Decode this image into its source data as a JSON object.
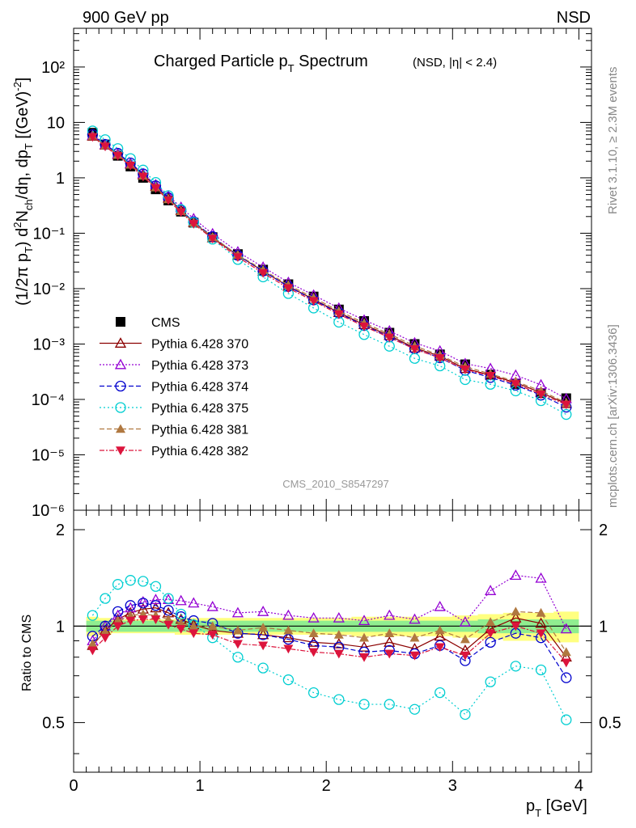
{
  "header": {
    "left": "900 GeV pp",
    "right": "NSD"
  },
  "plot_title": "Charged Particle p",
  "plot_title_sub": "T",
  "plot_title_rest": " Spectrum",
  "plot_title_cut": "(NSD, |η| < 2.4)",
  "ylabel_main": "(1/2π p_T) d²N_ch/dη, dp_T [(GeV)⁻²]",
  "ylabel_ratio": "Ratio to CMS",
  "xlabel": "p",
  "xlabel_sub": "T",
  "xlabel_unit": " [GeV]",
  "analysis_id": "CMS_2010_S8547297",
  "side_text_top": "Rivet 3.1.10, ≥ 2.3M events",
  "side_text_bottom": "mcplots.cern.ch [arXiv:1306.3436]",
  "chart_data": [
    {
      "type": "line",
      "title": "Charged Particle pT Spectrum (NSD, |η| < 2.4)",
      "xlabel": "pT [GeV]",
      "ylabel": "(1/2π pT) d²Nch/dη, dpT [(GeV)^-2]",
      "yscale": "log",
      "xlim": [
        0,
        4.1
      ],
      "ylim": [
        1e-06,
        500
      ],
      "x": [
        0.15,
        0.25,
        0.35,
        0.45,
        0.55,
        0.65,
        0.75,
        0.85,
        0.95,
        1.1,
        1.3,
        1.5,
        1.7,
        1.9,
        2.1,
        2.3,
        2.5,
        2.7,
        2.9,
        3.1,
        3.3,
        3.5,
        3.7,
        3.9
      ],
      "y_ticks": [
        "10⁻⁶",
        "10⁻⁵",
        "10⁻⁴",
        "10⁻³",
        "10⁻²",
        "10⁻¹",
        "1",
        "10",
        "10²"
      ],
      "x_ticks": [
        "0",
        "1",
        "2",
        "3",
        "4"
      ],
      "legend": "upper-left",
      "series": [
        {
          "name": "CMS",
          "color": "#000000",
          "marker": "square",
          "values": [
            6.5,
            4.0,
            2.5,
            1.6,
            1.0,
            0.62,
            0.39,
            0.245,
            0.155,
            0.085,
            0.042,
            0.022,
            0.012,
            0.0072,
            0.0042,
            0.0026,
            0.0016,
            0.001,
            0.00065,
            0.00043,
            0.00028,
            0.00019,
            0.00013,
            0.000105
          ]
        },
        {
          "name": "Pythia 6.428 370",
          "color": "#8b0000",
          "marker": "triangle-open",
          "dash": "",
          "ratio": [
            0.87,
            0.97,
            1.05,
            1.1,
            1.13,
            1.14,
            1.1,
            1.05,
            1.01,
            0.97,
            0.95,
            0.94,
            0.92,
            0.89,
            0.88,
            0.86,
            0.89,
            0.85,
            0.93,
            0.84,
            0.98,
            1.06,
            1.02,
            0.8
          ]
        },
        {
          "name": "Pythia 6.428 373",
          "color": "#9400d3",
          "marker": "triangle-open",
          "dash": "2,2",
          "ratio": [
            0.9,
            1.0,
            1.08,
            1.14,
            1.19,
            1.21,
            1.21,
            1.2,
            1.18,
            1.15,
            1.1,
            1.11,
            1.08,
            1.06,
            1.06,
            1.04,
            1.08,
            1.05,
            1.15,
            1.03,
            1.29,
            1.44,
            1.41,
            0.98
          ]
        },
        {
          "name": "Pythia 6.428 374",
          "color": "#0000cd",
          "marker": "circle-open",
          "dash": "6,3",
          "ratio": [
            0.93,
            1.0,
            1.11,
            1.16,
            1.18,
            1.16,
            1.12,
            1.07,
            1.04,
            1.02,
            0.95,
            0.94,
            0.91,
            0.87,
            0.86,
            0.83,
            0.84,
            0.82,
            0.87,
            0.78,
            0.89,
            0.95,
            0.92,
            0.69
          ]
        },
        {
          "name": "Pythia 6.428 375",
          "color": "#00ced1",
          "marker": "circle-open",
          "dash": "2,3",
          "ratio": [
            1.08,
            1.22,
            1.35,
            1.39,
            1.38,
            1.33,
            1.22,
            1.09,
            1.01,
            0.92,
            0.8,
            0.74,
            0.68,
            0.62,
            0.59,
            0.57,
            0.57,
            0.55,
            0.62,
            0.53,
            0.67,
            0.75,
            0.73,
            0.51
          ]
        },
        {
          "name": "Pythia 6.428 381",
          "color": "#b07840",
          "marker": "triangle-filled",
          "dash": "6,3",
          "ratio": [
            0.88,
            0.96,
            1.04,
            1.08,
            1.09,
            1.08,
            1.05,
            1.02,
            1.0,
            1.0,
            0.97,
            0.99,
            0.97,
            0.95,
            0.94,
            0.92,
            0.95,
            0.92,
            0.97,
            0.91,
            1.03,
            1.11,
            1.1,
            0.83
          ]
        },
        {
          "name": "Pythia 6.428 382",
          "color": "#dc143c",
          "marker": "triangle-down-filled",
          "dash": "6,2,2,2",
          "ratio": [
            0.84,
            0.92,
            1.0,
            1.04,
            1.05,
            1.05,
            1.01,
            0.98,
            0.95,
            0.94,
            0.88,
            0.87,
            0.85,
            0.83,
            0.82,
            0.8,
            0.82,
            0.81,
            0.86,
            0.81,
            0.95,
            1.0,
            0.95,
            0.77
          ]
        }
      ]
    },
    {
      "type": "line",
      "title": "",
      "xlabel": "pT [GeV]",
      "ylabel": "Ratio to CMS",
      "xlim": [
        0,
        4.1
      ],
      "ylim": [
        0.35,
        2.3
      ],
      "y_ticks": [
        "0.5",
        "1",
        "2"
      ],
      "band_inner": [
        0.96,
        0.96,
        0.96,
        0.96,
        0.96,
        0.96,
        0.96,
        0.96,
        0.96,
        0.96,
        0.96,
        0.96,
        0.96,
        0.96,
        0.96,
        0.96,
        0.96,
        0.96,
        0.96,
        0.96,
        0.95,
        0.95,
        0.95,
        0.95
      ],
      "band_inner_hi": [
        1.04,
        1.04,
        1.04,
        1.04,
        1.04,
        1.04,
        1.04,
        1.04,
        1.04,
        1.04,
        1.04,
        1.04,
        1.04,
        1.04,
        1.04,
        1.04,
        1.04,
        1.04,
        1.04,
        1.04,
        1.05,
        1.05,
        1.05,
        1.05
      ],
      "band_outer": [
        0.93,
        0.94,
        0.95,
        0.95,
        0.95,
        0.95,
        0.95,
        0.94,
        0.94,
        0.94,
        0.94,
        0.94,
        0.94,
        0.94,
        0.94,
        0.93,
        0.93,
        0.93,
        0.93,
        0.92,
        0.91,
        0.9,
        0.9,
        0.89
      ],
      "band_outer_hi": [
        1.07,
        1.06,
        1.05,
        1.05,
        1.05,
        1.05,
        1.05,
        1.06,
        1.06,
        1.06,
        1.06,
        1.06,
        1.06,
        1.06,
        1.06,
        1.07,
        1.07,
        1.07,
        1.07,
        1.08,
        1.09,
        1.1,
        1.1,
        1.11
      ]
    }
  ]
}
